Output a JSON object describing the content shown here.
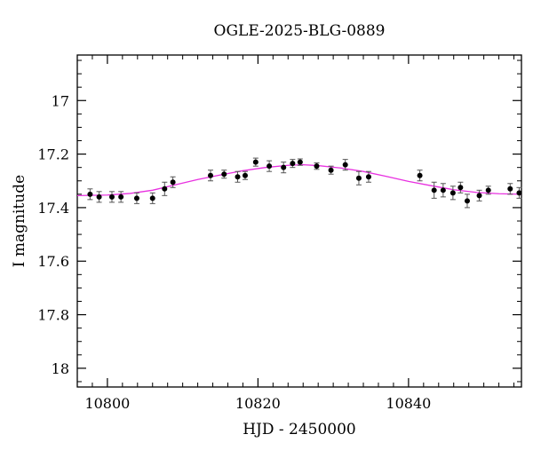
{
  "chart_data": {
    "type": "scatter",
    "title": "OGLE-2025-BLG-0889",
    "xlabel": "HJD - 2450000",
    "ylabel": "I magnitude",
    "xlim": [
      10796,
      10855
    ],
    "ylim": [
      18.07,
      16.83
    ],
    "y_inverted": true,
    "x_ticks": [
      10800,
      10820,
      10840
    ],
    "y_ticks": [
      17,
      17.2,
      17.4,
      17.6,
      17.8,
      18
    ],
    "y_tick_labels": [
      "17",
      "17.2",
      "17.4",
      "17.6",
      "17.8",
      "18"
    ],
    "grid": false,
    "colors": {
      "points": "#000000",
      "errorbars": "#555555",
      "model": "#e830e0"
    },
    "series": [
      {
        "type": "errorbar-scatter",
        "points": [
          {
            "x": 10797.7,
            "y": 17.35,
            "err": 0.02
          },
          {
            "x": 10798.9,
            "y": 17.36,
            "err": 0.02
          },
          {
            "x": 10800.6,
            "y": 17.36,
            "err": 0.02
          },
          {
            "x": 10801.8,
            "y": 17.36,
            "err": 0.02
          },
          {
            "x": 10803.9,
            "y": 17.365,
            "err": 0.02
          },
          {
            "x": 10806.0,
            "y": 17.365,
            "err": 0.02
          },
          {
            "x": 10807.6,
            "y": 17.33,
            "err": 0.025
          },
          {
            "x": 10808.7,
            "y": 17.305,
            "err": 0.02
          },
          {
            "x": 10813.7,
            "y": 17.28,
            "err": 0.02
          },
          {
            "x": 10815.5,
            "y": 17.275,
            "err": 0.015
          },
          {
            "x": 10817.3,
            "y": 17.285,
            "err": 0.02
          },
          {
            "x": 10818.3,
            "y": 17.28,
            "err": 0.015
          },
          {
            "x": 10819.7,
            "y": 17.23,
            "err": 0.015
          },
          {
            "x": 10821.5,
            "y": 17.245,
            "err": 0.02
          },
          {
            "x": 10823.4,
            "y": 17.25,
            "err": 0.02
          },
          {
            "x": 10824.6,
            "y": 17.235,
            "err": 0.015
          },
          {
            "x": 10825.6,
            "y": 17.23,
            "err": 0.012
          },
          {
            "x": 10827.8,
            "y": 17.245,
            "err": 0.012
          },
          {
            "x": 10829.7,
            "y": 17.26,
            "err": 0.015
          },
          {
            "x": 10831.6,
            "y": 17.24,
            "err": 0.02
          },
          {
            "x": 10833.4,
            "y": 17.29,
            "err": 0.025
          },
          {
            "x": 10834.7,
            "y": 17.285,
            "err": 0.02
          },
          {
            "x": 10841.5,
            "y": 17.28,
            "err": 0.02
          },
          {
            "x": 10843.4,
            "y": 17.335,
            "err": 0.03
          },
          {
            "x": 10844.6,
            "y": 17.335,
            "err": 0.025
          },
          {
            "x": 10845.9,
            "y": 17.345,
            "err": 0.025
          },
          {
            "x": 10846.9,
            "y": 17.325,
            "err": 0.02
          },
          {
            "x": 10847.8,
            "y": 17.375,
            "err": 0.025
          },
          {
            "x": 10849.4,
            "y": 17.355,
            "err": 0.02
          },
          {
            "x": 10850.6,
            "y": 17.335,
            "err": 0.015
          },
          {
            "x": 10853.5,
            "y": 17.33,
            "err": 0.02
          },
          {
            "x": 10854.7,
            "y": 17.345,
            "err": 0.02
          }
        ]
      },
      {
        "type": "model-curve",
        "points": [
          {
            "x": 10796,
            "y": 17.355
          },
          {
            "x": 10800,
            "y": 17.353
          },
          {
            "x": 10803,
            "y": 17.347
          },
          {
            "x": 10806,
            "y": 17.335
          },
          {
            "x": 10809,
            "y": 17.315
          },
          {
            "x": 10812,
            "y": 17.295
          },
          {
            "x": 10815,
            "y": 17.278
          },
          {
            "x": 10818,
            "y": 17.262
          },
          {
            "x": 10821,
            "y": 17.25
          },
          {
            "x": 10824,
            "y": 17.242
          },
          {
            "x": 10826,
            "y": 17.24
          },
          {
            "x": 10828,
            "y": 17.243
          },
          {
            "x": 10831,
            "y": 17.252
          },
          {
            "x": 10834,
            "y": 17.265
          },
          {
            "x": 10837,
            "y": 17.283
          },
          {
            "x": 10840,
            "y": 17.302
          },
          {
            "x": 10843,
            "y": 17.318
          },
          {
            "x": 10846,
            "y": 17.333
          },
          {
            "x": 10849,
            "y": 17.343
          },
          {
            "x": 10852,
            "y": 17.348
          },
          {
            "x": 10855,
            "y": 17.35
          }
        ]
      }
    ]
  }
}
